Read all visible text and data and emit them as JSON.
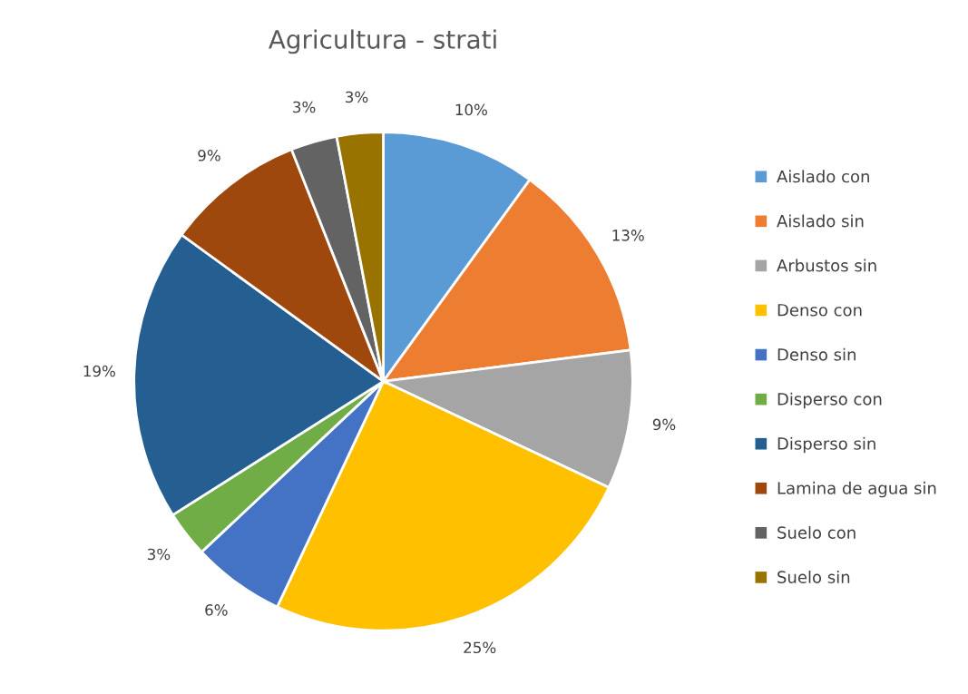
{
  "chart_data": {
    "type": "pie",
    "title": "Agricultura - strati",
    "categories": [
      "Aislado con",
      "Aislado sin",
      "Arbustos sin",
      "Denso con",
      "Denso sin",
      "Disperso con",
      "Disperso sin",
      "Lamina de agua sin",
      "Suelo con",
      "Suelo sin"
    ],
    "values": [
      10,
      13,
      9,
      25,
      6,
      3,
      19,
      9,
      3,
      3
    ],
    "value_labels": [
      "10%",
      "13%",
      "9%",
      "25%",
      "6%",
      "3%",
      "19%",
      "9%",
      "3%",
      "3%"
    ],
    "colors": [
      "#5b9bd5",
      "#ed7d31",
      "#a5a5a5",
      "#ffc000",
      "#4472c4",
      "#70ad47",
      "#255e91",
      "#9e480e",
      "#636363",
      "#997300"
    ],
    "legend": "right"
  }
}
